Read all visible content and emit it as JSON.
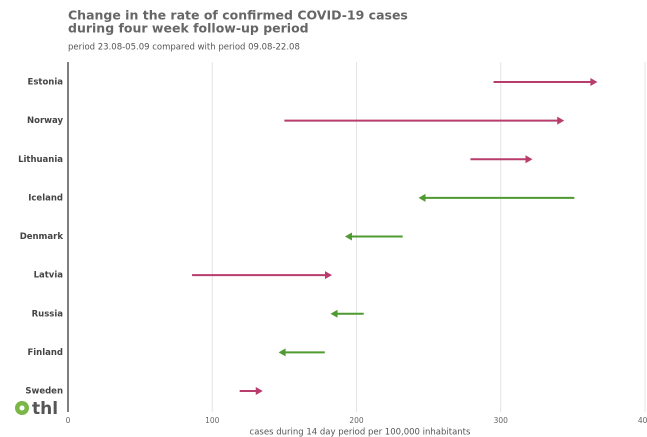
{
  "logo": "thl",
  "chart_data": {
    "type": "arrow",
    "title": [
      "Change in the rate of confirmed COVID-19 cases",
      "during four week follow-up period"
    ],
    "subtitle": "period 23.08-05.09 compared with period 09.08-22.08",
    "x_label": "cases during 14 day period per 100,000 inhabitants",
    "categories": [
      "Estonia",
      "Norway",
      "Lithuania",
      "Iceland",
      "Denmark",
      "Latvia",
      "Russia",
      "Finland",
      "Sweden"
    ],
    "from": [
      295,
      150,
      279,
      351,
      232,
      86,
      205,
      178,
      119
    ],
    "to": [
      367,
      344,
      322,
      243,
      192,
      183,
      182,
      146,
      135
    ],
    "colors": {
      "increase": "#b83c6c",
      "decrease": "#4f9a31"
    },
    "xlim": [
      0,
      400
    ],
    "xticks": [
      0,
      100,
      200,
      300,
      400
    ],
    "grid": true
  }
}
